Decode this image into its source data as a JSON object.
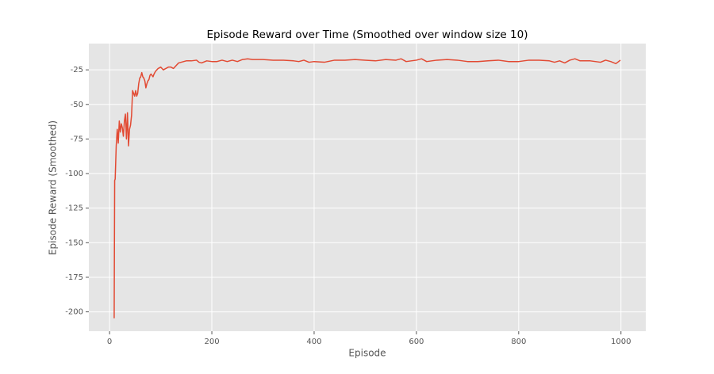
{
  "chart_data": {
    "type": "line",
    "title": "Episode Reward over Time (Smoothed over window size 10)",
    "x_label": "Episode",
    "y_label": "Episode Reward (Smoothed)",
    "color": "#e24a33",
    "grid": true,
    "xlim": [
      -40.5,
      1048.5
    ],
    "ylim": [
      -214,
      -6
    ],
    "xticks": [
      0,
      200,
      400,
      600,
      800,
      1000
    ],
    "yticks": [
      -200,
      -175,
      -150,
      -125,
      -100,
      -75,
      -50,
      -25
    ],
    "x": [
      9,
      10,
      11,
      13,
      15,
      17,
      19,
      21,
      23,
      25,
      27,
      29,
      31,
      33,
      35,
      37,
      39,
      41,
      43,
      45,
      47,
      49,
      51,
      53,
      55,
      57,
      59,
      61,
      63,
      65,
      67,
      69,
      71,
      73,
      75,
      77,
      79,
      81,
      83,
      85,
      87,
      90,
      95,
      100,
      105,
      110,
      115,
      120,
      125,
      130,
      135,
      140,
      150,
      160,
      170,
      175,
      180,
      190,
      200,
      210,
      220,
      230,
      240,
      250,
      260,
      270,
      280,
      300,
      320,
      340,
      360,
      370,
      380,
      390,
      400,
      420,
      440,
      460,
      480,
      500,
      520,
      540,
      560,
      570,
      580,
      600,
      610,
      620,
      640,
      660,
      680,
      700,
      720,
      740,
      760,
      780,
      800,
      820,
      840,
      860,
      870,
      880,
      890,
      900,
      910,
      920,
      940,
      960,
      970,
      980,
      990,
      999
    ],
    "values": [
      -204.6,
      -105,
      -104,
      -80,
      -68,
      -78,
      -62,
      -70,
      -64,
      -67,
      -73,
      -62,
      -57,
      -75,
      -56,
      -80,
      -68,
      -65,
      -58,
      -40,
      -42,
      -44,
      -40,
      -44,
      -42,
      -35,
      -31,
      -30,
      -27,
      -30,
      -31,
      -33,
      -38,
      -35,
      -33,
      -32,
      -29,
      -28,
      -29,
      -30,
      -28,
      -26,
      -24,
      -23,
      -25,
      -24,
      -23,
      -23,
      -24,
      -22,
      -20,
      -19.5,
      -18.5,
      -18.5,
      -18,
      -19.5,
      -20,
      -18.5,
      -19,
      -19,
      -18,
      -19,
      -18,
      -19,
      -17.5,
      -17,
      -17.5,
      -17.5,
      -18,
      -18,
      -18.5,
      -19,
      -18,
      -19.5,
      -19,
      -19.5,
      -18,
      -18,
      -17.5,
      -18,
      -18.5,
      -17.5,
      -18,
      -17,
      -19,
      -18,
      -17,
      -19,
      -18,
      -17.5,
      -18,
      -19,
      -19,
      -18.5,
      -18,
      -19,
      -19,
      -18,
      -18,
      -18.5,
      -19.5,
      -18.5,
      -20,
      -18,
      -17,
      -18.5,
      -18.5,
      -19.5,
      -18,
      -19,
      -20.5,
      -18
    ]
  }
}
